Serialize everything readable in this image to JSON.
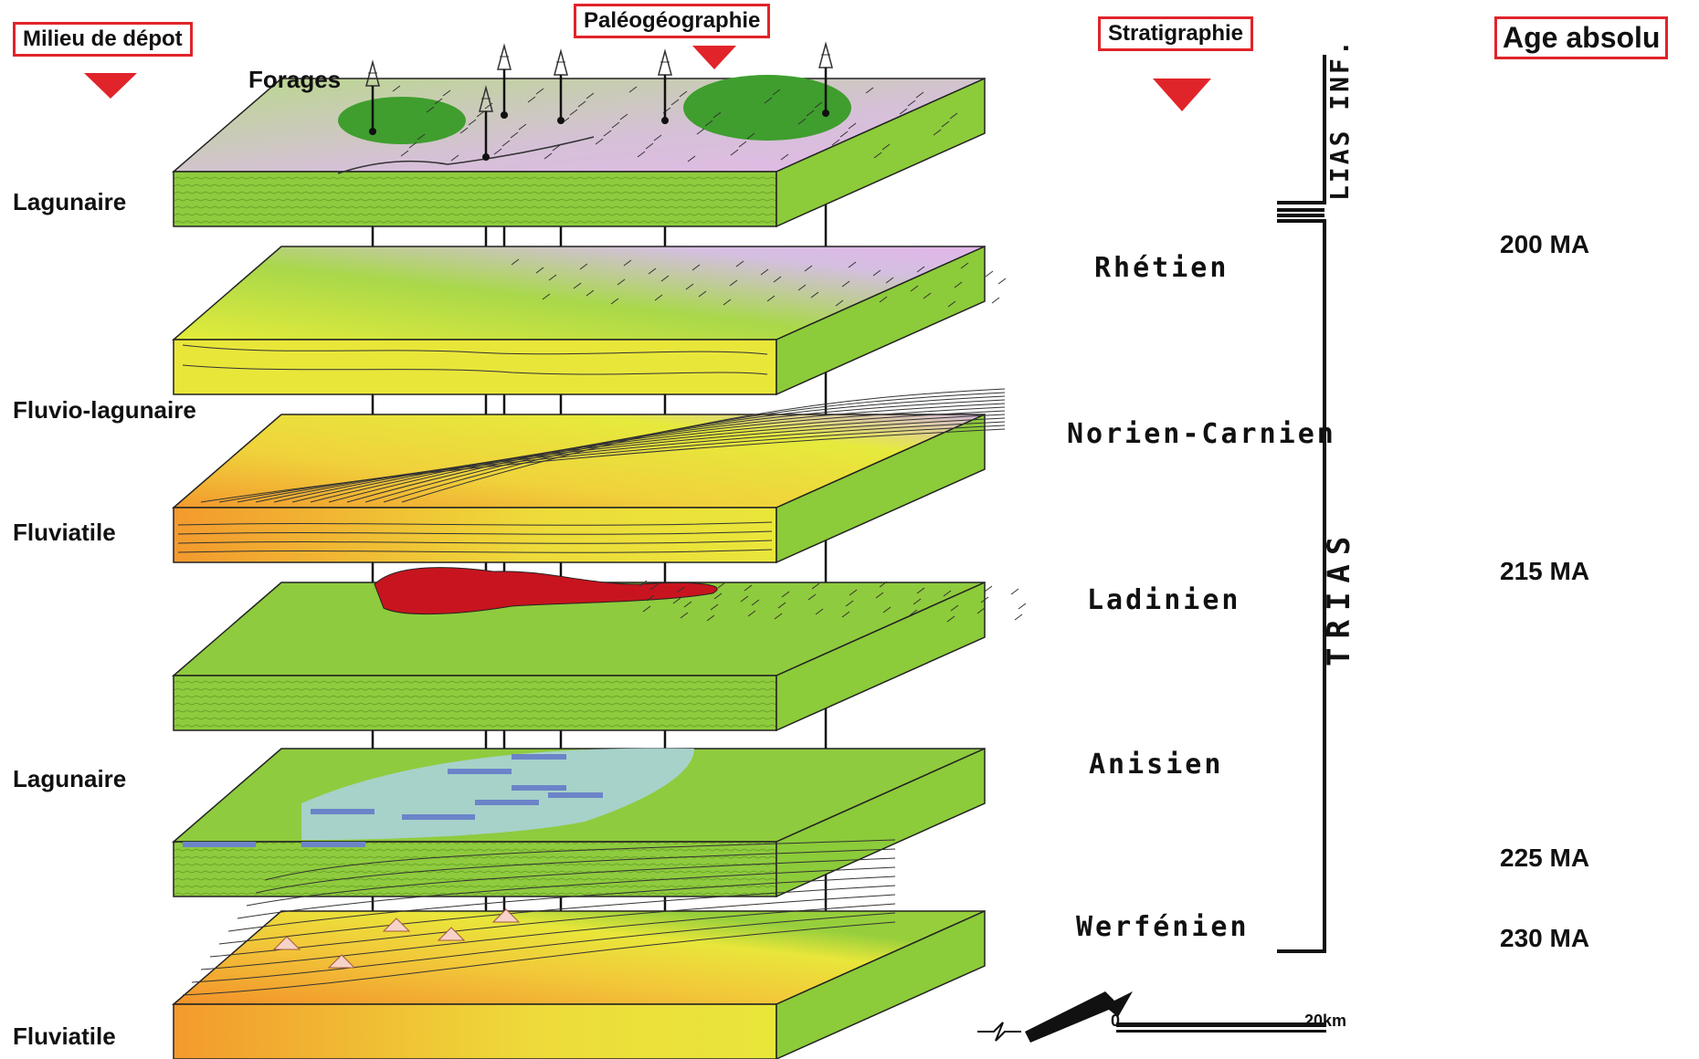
{
  "headers": {
    "milieu": "Milieu de dépot",
    "paleo": "Paléogéographie",
    "strati": "Stratigraphie",
    "age": "Age absolu"
  },
  "forages_label": "Forages",
  "environments": [
    "Lagunaire",
    "Fluvio-lagunaire",
    "Fluviatile",
    "Lagunaire",
    "Fluviatile"
  ],
  "stages": [
    "Rhétien",
    "Norien-Carnien",
    "Ladinien",
    "Anisien",
    "Werfénien"
  ],
  "periods": {
    "lias": "LIAS INF.",
    "trias": "TRIAS"
  },
  "ages": [
    "200 MA",
    "215 MA",
    "225 MA",
    "230 MA"
  ],
  "scale": {
    "start": "0",
    "end": "20km"
  },
  "colors": {
    "header_border": "#e0242a",
    "green": "#8ccb3a",
    "yellow": "#e9e63a",
    "orange": "#f2a23a",
    "lavender": "#d8b4e2",
    "red": "#c8141e",
    "blue_grey": "#a9d3d8"
  }
}
